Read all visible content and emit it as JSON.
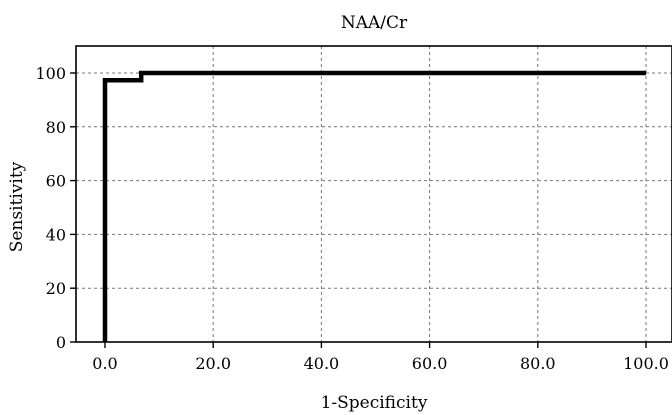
{
  "chart_data": {
    "type": "line",
    "title": "NAA/Cr",
    "xlabel": "1-Specificity",
    "ylabel": "Sensitivity",
    "xlim": [
      0,
      100
    ],
    "ylim": [
      0,
      110
    ],
    "x_ticks": [
      "0.0",
      "20.0",
      "40.0",
      "60.0",
      "80.0",
      "100.0"
    ],
    "y_ticks": [
      "0",
      "20",
      "40",
      "60",
      "80",
      "100"
    ],
    "grid": true,
    "series": [
      {
        "x": [
          0,
          0,
          6.7,
          6.7,
          100
        ],
        "y": [
          0,
          97.3,
          97.3,
          100,
          100
        ]
      }
    ]
  }
}
